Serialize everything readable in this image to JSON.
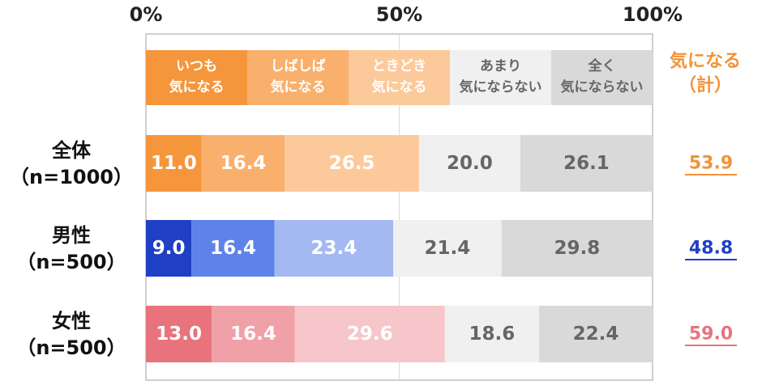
{
  "chart_data": {
    "type": "bar",
    "orientation": "horizontal",
    "stacked": true,
    "xlim": [
      0,
      100
    ],
    "x_ticks": [
      "0%",
      "50%",
      "100%"
    ],
    "legend": [
      {
        "lines": [
          "いつも",
          "気になる"
        ],
        "color": "#f5963c",
        "text_color": "#ffffff"
      },
      {
        "lines": [
          "しばしば",
          "気になる"
        ],
        "color": "#f9b06c",
        "text_color": "#ffffff"
      },
      {
        "lines": [
          "ときどき",
          "気になる"
        ],
        "color": "#fcc99a",
        "text_color": "#ffffff"
      },
      {
        "lines": [
          "あまり",
          "気にならない"
        ],
        "color": "#f0f0f0",
        "text_color": "#666666"
      },
      {
        "lines": [
          "全く",
          "気にならない"
        ],
        "color": "#d9d9d9",
        "text_color": "#666666"
      }
    ],
    "total_header": [
      "気になる",
      "（計）"
    ],
    "total_header_color": "#f39237",
    "rows": [
      {
        "label": [
          "全体",
          "（n=1000）"
        ],
        "values": [
          11.0,
          16.4,
          26.5,
          20.0,
          26.1
        ],
        "labels": [
          "11.0",
          "16.4",
          "26.5",
          "20.0",
          "26.1"
        ],
        "colors": [
          "#f5963c",
          "#f9b06c",
          "#fcc99a",
          "#f0f0f0",
          "#d9d9d9"
        ],
        "text_colors": [
          "#ffffff",
          "#ffffff",
          "#ffffff",
          "#666666",
          "#666666"
        ],
        "total": "53.9",
        "total_color": "#f39237"
      },
      {
        "label": [
          "男性",
          "（n=500）"
        ],
        "values": [
          9.0,
          16.4,
          23.4,
          21.4,
          29.8
        ],
        "labels": [
          "9.0",
          "16.4",
          "23.4",
          "21.4",
          "29.8"
        ],
        "colors": [
          "#1f3fc4",
          "#5d82ea",
          "#a4b9f2",
          "#f0f0f0",
          "#d9d9d9"
        ],
        "text_colors": [
          "#ffffff",
          "#ffffff",
          "#ffffff",
          "#666666",
          "#666666"
        ],
        "total": "48.8",
        "total_color": "#1f3fc4"
      },
      {
        "label": [
          "女性",
          "（n=500）"
        ],
        "values": [
          13.0,
          16.4,
          29.6,
          18.6,
          22.4
        ],
        "labels": [
          "13.0",
          "16.4",
          "29.6",
          "18.6",
          "22.4"
        ],
        "colors": [
          "#e8737d",
          "#f0a0a7",
          "#f6c6ca",
          "#f0f0f0",
          "#d9d9d9"
        ],
        "text_colors": [
          "#ffffff",
          "#ffffff",
          "#ffffff",
          "#666666",
          "#666666"
        ],
        "total": "59.0",
        "total_color": "#e8737d"
      }
    ]
  }
}
